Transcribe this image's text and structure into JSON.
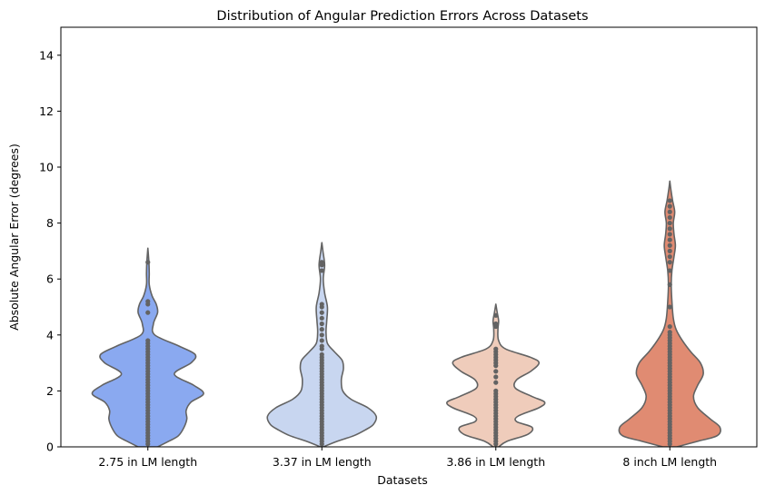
{
  "chart_data": {
    "type": "violin",
    "title": "Distribution of Angular Prediction Errors Across Datasets",
    "xlabel": "Datasets",
    "ylabel": "Absolute Angular Error (degrees)",
    "ylim": [
      0,
      15
    ],
    "yticks": [
      0,
      2,
      4,
      6,
      8,
      10,
      12,
      14
    ],
    "grid": false,
    "categories": [
      "2.75 in LM length",
      "3.37 in LM length",
      "3.86 in LM length",
      "8 inch LM length"
    ],
    "colors": [
      "#8aa9f0",
      "#c8d6f0",
      "#efccbb",
      "#e08b72"
    ],
    "edge_color": "#636363",
    "violins": [
      {
        "category": "2.75 in LM length",
        "min": 0,
        "max": 7.1,
        "profile": [
          [
            0,
            0.14
          ],
          [
            0.2,
            0.3
          ],
          [
            0.4,
            0.44
          ],
          [
            0.7,
            0.52
          ],
          [
            1.0,
            0.56
          ],
          [
            1.3,
            0.55
          ],
          [
            1.6,
            0.62
          ],
          [
            1.9,
            0.8
          ],
          [
            2.2,
            0.66
          ],
          [
            2.6,
            0.38
          ],
          [
            3.0,
            0.62
          ],
          [
            3.3,
            0.68
          ],
          [
            3.6,
            0.45
          ],
          [
            4.0,
            0.1
          ],
          [
            4.4,
            0.08
          ],
          [
            4.8,
            0.14
          ],
          [
            5.1,
            0.12
          ],
          [
            5.4,
            0.06
          ],
          [
            5.8,
            0.02
          ],
          [
            6.2,
            0.02
          ],
          [
            6.6,
            0.015
          ],
          [
            7.1,
            0
          ]
        ],
        "points": [
          0.1,
          0.2,
          0.3,
          0.4,
          0.5,
          0.6,
          0.7,
          0.8,
          0.9,
          1.0,
          1.1,
          1.2,
          1.3,
          1.4,
          1.5,
          1.6,
          1.7,
          1.8,
          1.9,
          2.0,
          2.1,
          2.2,
          2.3,
          2.4,
          2.5,
          2.6,
          2.7,
          2.8,
          2.9,
          3.0,
          3.1,
          3.2,
          3.3,
          3.4,
          3.5,
          3.6,
          3.7,
          3.8,
          4.8,
          5.1,
          5.2,
          6.6
        ]
      },
      {
        "category": "3.37 in LM length",
        "min": 0,
        "max": 7.3,
        "profile": [
          [
            0,
            0.02
          ],
          [
            0.2,
            0.22
          ],
          [
            0.4,
            0.46
          ],
          [
            0.6,
            0.62
          ],
          [
            0.8,
            0.74
          ],
          [
            1.1,
            0.78
          ],
          [
            1.4,
            0.66
          ],
          [
            1.7,
            0.42
          ],
          [
            2.0,
            0.3
          ],
          [
            2.4,
            0.28
          ],
          [
            2.8,
            0.31
          ],
          [
            3.1,
            0.29
          ],
          [
            3.4,
            0.18
          ],
          [
            3.7,
            0.08
          ],
          [
            4.1,
            0.06
          ],
          [
            4.5,
            0.07
          ],
          [
            5.0,
            0.08
          ],
          [
            5.5,
            0.04
          ],
          [
            6.0,
            0.02
          ],
          [
            6.5,
            0.04
          ],
          [
            7.0,
            0.015
          ],
          [
            7.3,
            0
          ]
        ],
        "points": [
          0.1,
          0.2,
          0.3,
          0.4,
          0.5,
          0.6,
          0.7,
          0.8,
          0.9,
          1.0,
          1.1,
          1.2,
          1.3,
          1.4,
          1.5,
          1.6,
          1.7,
          1.8,
          1.9,
          2.0,
          2.1,
          2.2,
          2.3,
          2.4,
          2.5,
          2.6,
          2.7,
          2.8,
          2.9,
          3.0,
          3.1,
          3.2,
          3.3,
          3.5,
          3.6,
          3.8,
          4.0,
          4.2,
          4.4,
          4.6,
          4.8,
          5.0,
          5.1,
          6.3,
          6.5,
          6.6
        ]
      },
      {
        "category": "3.86 in LM length",
        "min": 0,
        "max": 5.1,
        "profile": [
          [
            0,
            0.04
          ],
          [
            0.2,
            0.16
          ],
          [
            0.45,
            0.46
          ],
          [
            0.7,
            0.52
          ],
          [
            0.9,
            0.3
          ],
          [
            1.1,
            0.32
          ],
          [
            1.4,
            0.62
          ],
          [
            1.6,
            0.7
          ],
          [
            1.8,
            0.52
          ],
          [
            2.1,
            0.28
          ],
          [
            2.4,
            0.3
          ],
          [
            2.7,
            0.5
          ],
          [
            3.0,
            0.62
          ],
          [
            3.2,
            0.5
          ],
          [
            3.5,
            0.14
          ],
          [
            3.8,
            0.04
          ],
          [
            4.2,
            0.03
          ],
          [
            4.5,
            0.04
          ],
          [
            4.8,
            0.02
          ],
          [
            5.1,
            0
          ]
        ],
        "points": [
          0.1,
          0.2,
          0.3,
          0.4,
          0.5,
          0.6,
          0.7,
          0.8,
          0.9,
          1.0,
          1.1,
          1.2,
          1.3,
          1.4,
          1.5,
          1.6,
          1.7,
          1.8,
          1.9,
          2.0,
          2.3,
          2.5,
          2.7,
          2.9,
          3.0,
          3.1,
          3.2,
          3.3,
          3.4,
          3.5,
          4.3,
          4.4,
          4.7
        ]
      },
      {
        "category": "8 inch LM length",
        "min": 0,
        "max": 9.5,
        "profile": [
          [
            0,
            0.1
          ],
          [
            0.2,
            0.4
          ],
          [
            0.4,
            0.68
          ],
          [
            0.7,
            0.72
          ],
          [
            1.0,
            0.58
          ],
          [
            1.4,
            0.4
          ],
          [
            1.8,
            0.34
          ],
          [
            2.2,
            0.4
          ],
          [
            2.6,
            0.48
          ],
          [
            3.0,
            0.44
          ],
          [
            3.4,
            0.3
          ],
          [
            3.8,
            0.18
          ],
          [
            4.2,
            0.09
          ],
          [
            4.6,
            0.05
          ],
          [
            5.2,
            0.03
          ],
          [
            5.8,
            0.02
          ],
          [
            6.3,
            0.03
          ],
          [
            6.8,
            0.06
          ],
          [
            7.2,
            0.08
          ],
          [
            7.6,
            0.06
          ],
          [
            8.0,
            0.05
          ],
          [
            8.4,
            0.07
          ],
          [
            8.8,
            0.04
          ],
          [
            9.2,
            0.015
          ],
          [
            9.5,
            0
          ]
        ],
        "points": [
          0.1,
          0.2,
          0.3,
          0.4,
          0.5,
          0.6,
          0.7,
          0.8,
          0.9,
          1.0,
          1.1,
          1.2,
          1.3,
          1.4,
          1.5,
          1.6,
          1.7,
          1.8,
          1.9,
          2.0,
          2.1,
          2.2,
          2.3,
          2.4,
          2.5,
          2.6,
          2.7,
          2.8,
          2.9,
          3.0,
          3.1,
          3.2,
          3.3,
          3.4,
          3.5,
          3.6,
          3.7,
          3.8,
          3.9,
          4.0,
          4.1,
          4.3,
          5.0,
          5.8,
          6.3,
          6.6,
          6.8,
          7.0,
          7.2,
          7.4,
          7.6,
          7.8,
          8.0,
          8.2,
          8.4,
          8.6,
          8.8
        ]
      }
    ]
  }
}
